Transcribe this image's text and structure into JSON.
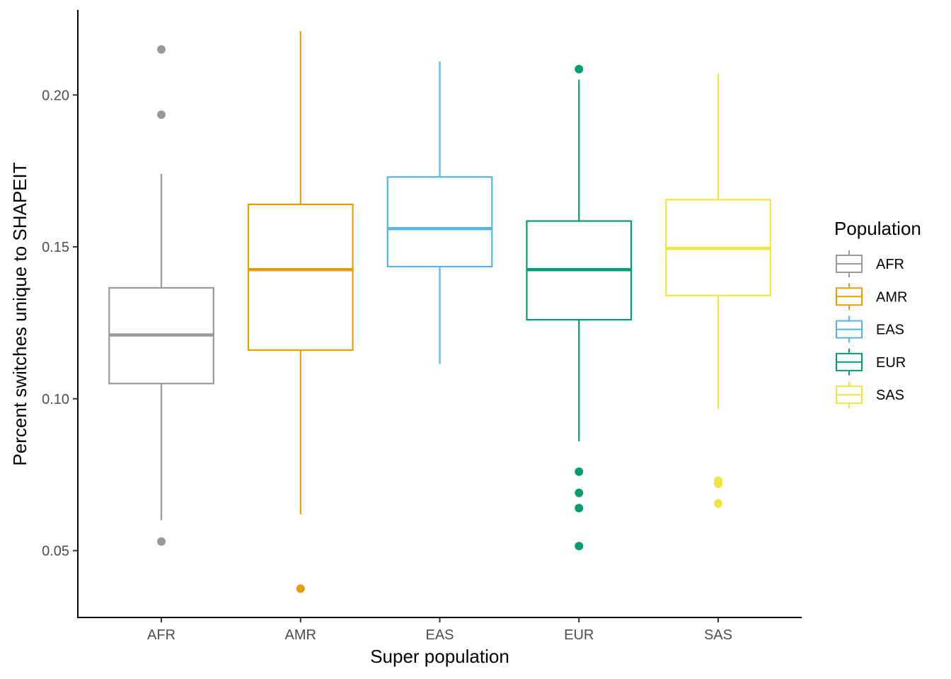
{
  "chart_data": {
    "type": "box",
    "xlabel": "Super population",
    "ylabel": "Percent switches unique to SHAPEIT",
    "ylim": [
      0.028,
      0.228
    ],
    "yticks": [
      0.05,
      0.1,
      0.15,
      0.2
    ],
    "ytick_labels": [
      "0.05",
      "0.10",
      "0.15",
      "0.20"
    ],
    "categories": [
      "AFR",
      "AMR",
      "EAS",
      "EUR",
      "SAS"
    ],
    "grid": false,
    "legend": {
      "title": "Population",
      "position": "right"
    },
    "series": [
      {
        "name": "AFR",
        "color": "#999999",
        "whisker_low": 0.06,
        "q1": 0.105,
        "median": 0.121,
        "q3": 0.1365,
        "whisker_high": 0.174,
        "outliers": [
          0.215,
          0.1935,
          0.053
        ]
      },
      {
        "name": "AMR",
        "color": "#E69F00",
        "whisker_low": 0.062,
        "q1": 0.116,
        "median": 0.1425,
        "q3": 0.164,
        "whisker_high": 0.221,
        "outliers": [
          0.0375
        ]
      },
      {
        "name": "EAS",
        "color": "#56B4E9",
        "whisker_low": 0.1115,
        "q1": 0.1435,
        "median": 0.156,
        "q3": 0.173,
        "whisker_high": 0.211,
        "outliers": []
      },
      {
        "name": "EUR",
        "color": "#009E73",
        "whisker_low": 0.086,
        "q1": 0.126,
        "median": 0.1425,
        "q3": 0.1585,
        "whisker_high": 0.205,
        "outliers": [
          0.2085,
          0.076,
          0.069,
          0.064,
          0.0515
        ]
      },
      {
        "name": "SAS",
        "color": "#F0E442",
        "whisker_low": 0.0965,
        "q1": 0.134,
        "median": 0.1495,
        "q3": 0.1655,
        "whisker_high": 0.207,
        "outliers": [
          0.073,
          0.072,
          0.0655
        ]
      }
    ]
  }
}
